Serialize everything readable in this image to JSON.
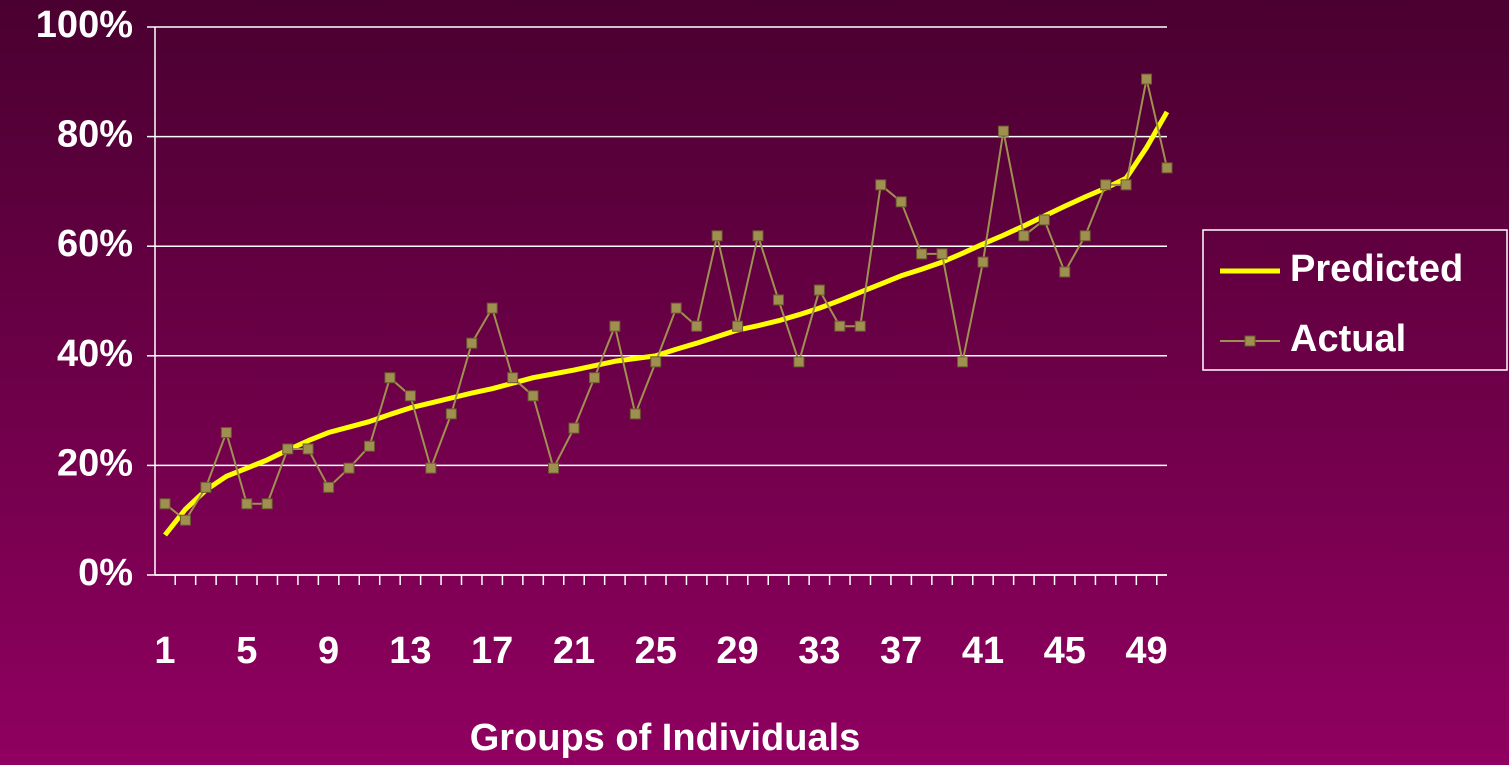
{
  "chart_data": {
    "type": "line",
    "x_label": "Groups of Individuals",
    "categories": [
      1,
      null,
      null,
      null,
      5,
      null,
      null,
      null,
      9,
      null,
      null,
      null,
      13,
      null,
      null,
      null,
      17,
      null,
      null,
      null,
      21,
      null,
      null,
      null,
      25,
      null,
      null,
      null,
      29,
      null,
      null,
      null,
      33,
      null,
      null,
      null,
      37,
      null,
      null,
      null,
      41,
      null,
      null,
      null,
      45,
      null,
      null,
      null,
      49,
      null
    ],
    "series": [
      {
        "name": "Predicted",
        "color": "#ffff00",
        "marker": false,
        "values": [
          7.3,
          12,
          15.5,
          18,
          19.5,
          21,
          22.8,
          24.5,
          26,
          27,
          28,
          29.3,
          30.5,
          31.4,
          32.3,
          33.2,
          34,
          35,
          36,
          36.7,
          37.4,
          38.2,
          39,
          39.5,
          40,
          41.2,
          42.3,
          43.5,
          44.7,
          45.5,
          46.4,
          47.5,
          48.7,
          50.1,
          51.6,
          53.1,
          54.6,
          55.8,
          57.1,
          58.7,
          60.4,
          62,
          63.7,
          65.5,
          67.3,
          69,
          70.6,
          72.4,
          78,
          84.5
        ]
      },
      {
        "name": "Actual",
        "color": "#a09050",
        "marker": true,
        "values": [
          13,
          10,
          16,
          26,
          13,
          13,
          23,
          23,
          16,
          19.5,
          23.5,
          36,
          32.7,
          19.5,
          29.4,
          42.3,
          48.7,
          36,
          32.7,
          19.5,
          26.8,
          36,
          45.4,
          29.4,
          38.9,
          48.7,
          45.4,
          61.9,
          45.4,
          61.9,
          50.2,
          38.9,
          52,
          45.4,
          45.4,
          71.2,
          68.1,
          58.6,
          58.6,
          38.9,
          57.1,
          81,
          61.9,
          64.8,
          55.3,
          61.9,
          71.2,
          71.2,
          90.5,
          74.3
        ]
      }
    ],
    "ylim": [
      0,
      100
    ],
    "yticks": [
      {
        "value": 0,
        "label": "0%"
      },
      {
        "value": 20,
        "label": "20%"
      },
      {
        "value": 40,
        "label": "40%"
      },
      {
        "value": 60,
        "label": "60%"
      },
      {
        "value": 80,
        "label": "80%"
      },
      {
        "value": 100,
        "label": "100%"
      }
    ],
    "grid": true,
    "legend": "right"
  }
}
